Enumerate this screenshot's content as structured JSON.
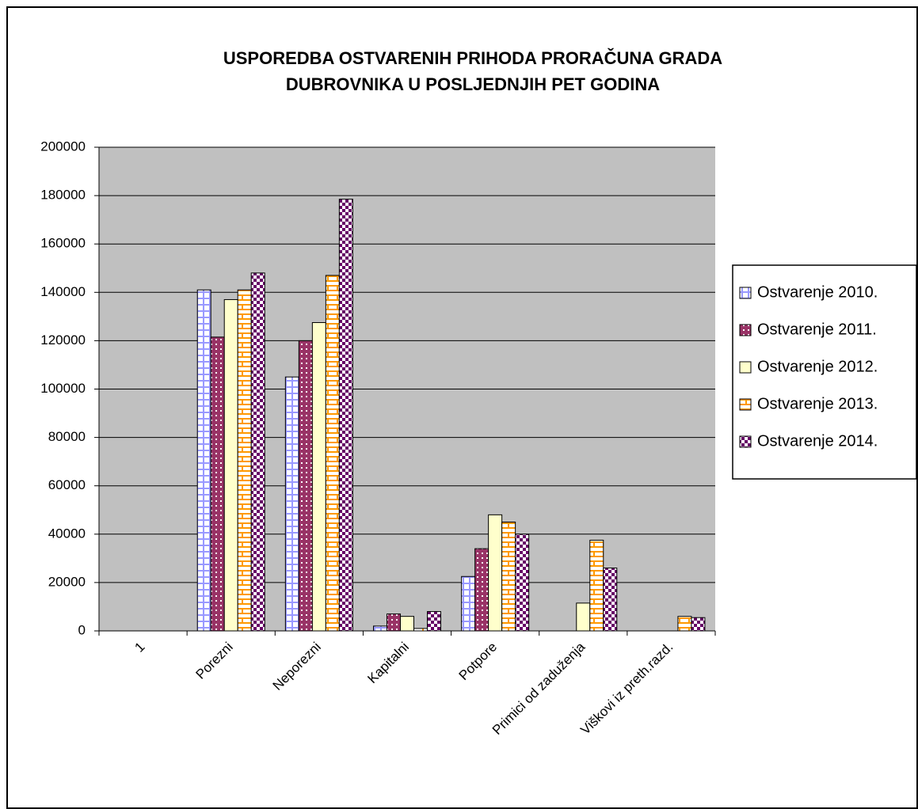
{
  "chart_data": {
    "type": "bar",
    "title": [
      "USPOREDBA OSTVARENIH PRIHODA PRORAČUNA GRADA",
      "DUBROVNIKA U POSLJEDNJIH PET GODINA"
    ],
    "categories": [
      "1",
      "Porezni",
      "Neporezni",
      "Kapitalni",
      "Potpore",
      "Primici od zaduženja",
      "Viškovi iz preth.razd."
    ],
    "series": [
      {
        "name": "Ostvarenje 2010.",
        "color": "#9999ff",
        "values": [
          null,
          141000,
          105000,
          2000,
          22500,
          null,
          null
        ]
      },
      {
        "name": "Ostvarenje 2011.",
        "color": "#993366",
        "values": [
          null,
          121500,
          120000,
          7000,
          34000,
          null,
          null
        ]
      },
      {
        "name": "Ostvarenje 2012.",
        "color": "#ffffcc",
        "values": [
          null,
          137000,
          127500,
          6000,
          48000,
          11500,
          null
        ]
      },
      {
        "name": "Ostvarenje 2013.",
        "color": "#ff9900",
        "values": [
          null,
          141000,
          147000,
          1000,
          45000,
          37500,
          6000
        ]
      },
      {
        "name": "Ostvarenje 2014.",
        "color": "#660066",
        "values": [
          null,
          148000,
          178500,
          8000,
          40000,
          26000,
          5500
        ]
      }
    ],
    "ylim": [
      0,
      200000
    ],
    "yticks": [
      0,
      20000,
      40000,
      60000,
      80000,
      100000,
      120000,
      140000,
      160000,
      180000,
      200000
    ],
    "grid": true,
    "legend": "right"
  }
}
